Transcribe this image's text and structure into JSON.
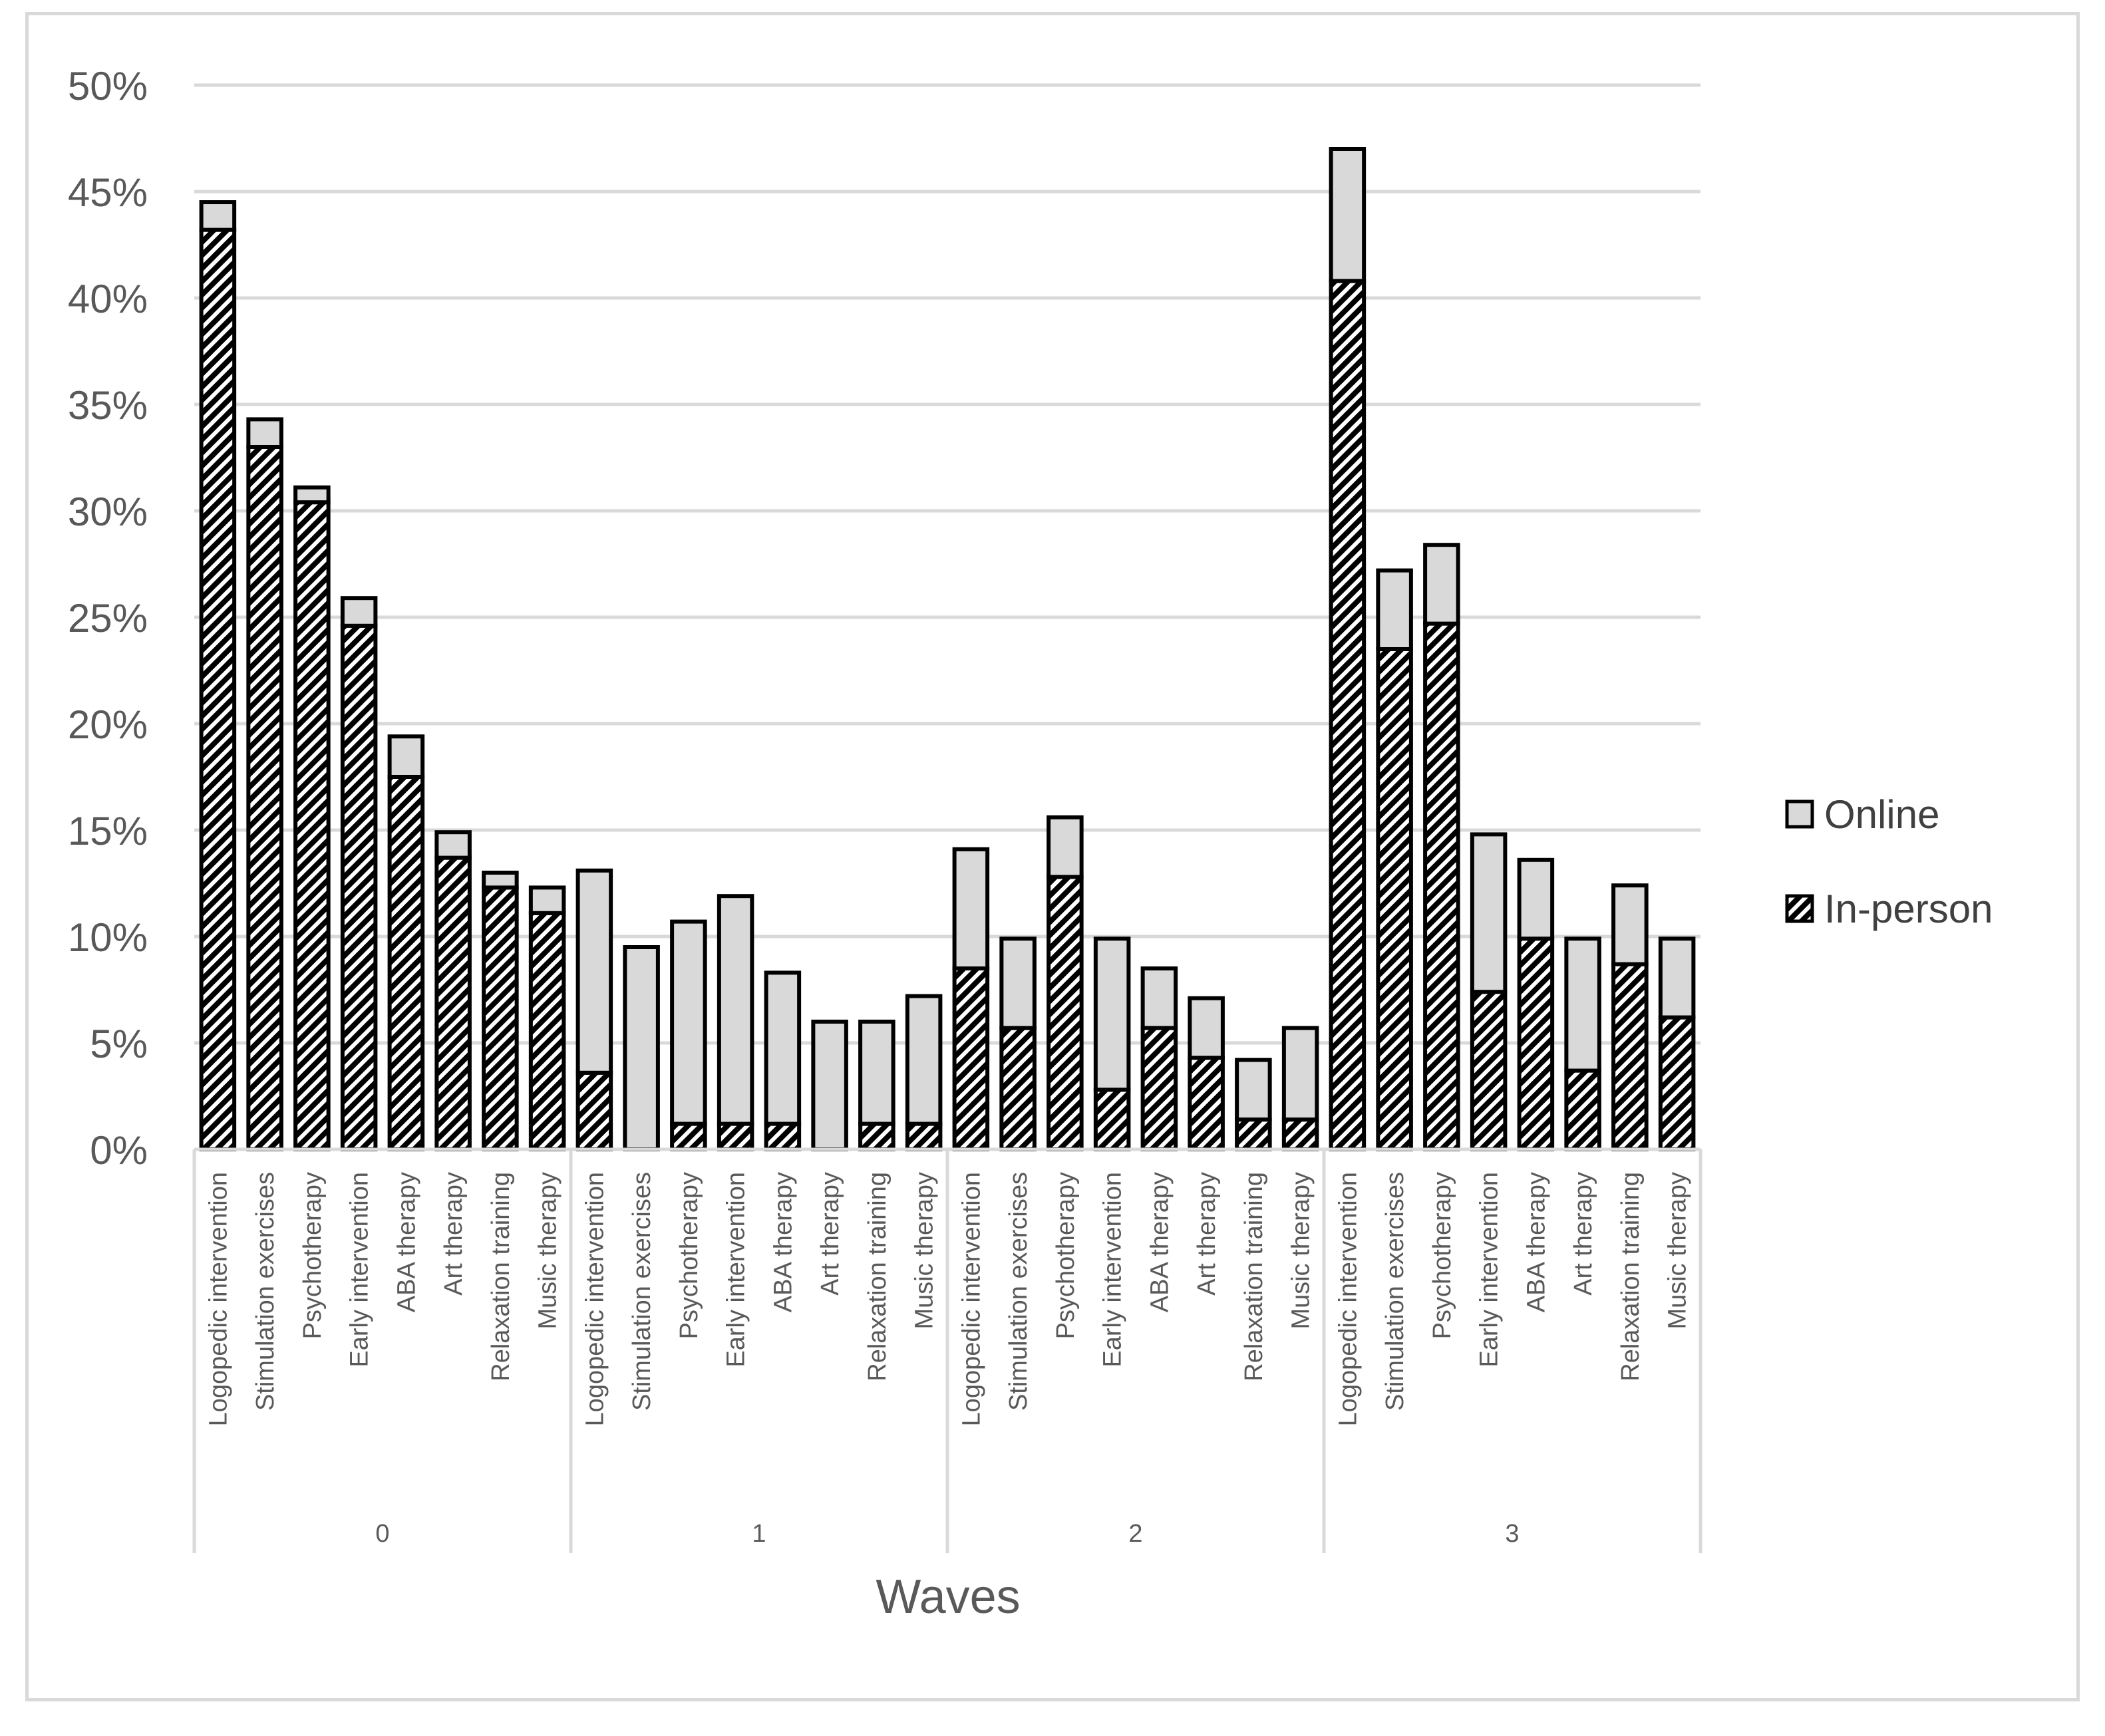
{
  "chart_data": {
    "type": "bar",
    "stacked": true,
    "xlabel": "Waves",
    "ylabel": "",
    "ylim": [
      0,
      50
    ],
    "y_ticks": [
      "0%",
      "5%",
      "10%",
      "15%",
      "20%",
      "25%",
      "30%",
      "35%",
      "40%",
      "45%",
      "50%"
    ],
    "grid": true,
    "legend_position": "right",
    "groups": [
      {
        "name": "0",
        "categories": [
          "Logopedic intervention",
          "Stimulation exercises",
          "Psychotherapy",
          "Early intervention",
          "ABA therapy",
          "Art therapy",
          "Relaxation training",
          "Music therapy"
        ],
        "in_person": [
          43.2,
          33.0,
          30.4,
          24.6,
          17.5,
          13.7,
          12.3,
          11.1
        ],
        "online": [
          1.3,
          1.3,
          0.7,
          1.3,
          1.9,
          1.2,
          0.7,
          1.2
        ]
      },
      {
        "name": "1",
        "categories": [
          "Logopedic intervention",
          "Stimulation exercises",
          "Psychotherapy",
          "Early intervention",
          "ABA therapy",
          "Art therapy",
          "Relaxation training",
          "Music therapy"
        ],
        "in_person": [
          3.6,
          0,
          1.2,
          1.2,
          1.2,
          0,
          1.2,
          1.2
        ],
        "online": [
          9.5,
          9.5,
          9.5,
          10.7,
          7.1,
          6.0,
          4.8,
          6.0
        ]
      },
      {
        "name": "2",
        "categories": [
          "Logopedic intervention",
          "Stimulation exercises",
          "Psychotherapy",
          "Early intervention",
          "ABA therapy",
          "Art therapy",
          "Relaxation training",
          "Music therapy"
        ],
        "in_person": [
          8.5,
          5.7,
          12.8,
          2.8,
          5.7,
          4.3,
          1.4,
          1.4
        ],
        "online": [
          5.6,
          4.2,
          2.8,
          7.1,
          2.8,
          2.8,
          2.8,
          4.3
        ]
      },
      {
        "name": "3",
        "categories": [
          "Logopedic intervention",
          "Stimulation exercises",
          "Psychotherapy",
          "Early intervention",
          "ABA therapy",
          "Art therapy",
          "Relaxation training",
          "Music therapy"
        ],
        "in_person": [
          40.8,
          23.5,
          24.7,
          7.4,
          9.9,
          3.7,
          8.7,
          6.2
        ],
        "online": [
          6.2,
          3.7,
          3.7,
          7.4,
          3.7,
          6.2,
          3.7,
          3.7
        ]
      }
    ],
    "series": [
      {
        "name": "Online",
        "key": "online",
        "fill": "#d9d9d9"
      },
      {
        "name": "In-person",
        "key": "in_person",
        "pattern": "diagonal-hatch"
      }
    ]
  },
  "colors": {
    "grid": "#d9d9d9",
    "bar_outline": "#000000",
    "online_fill": "#d9d9d9",
    "hatch_dark": "#000000",
    "hatch_light": "#ffffff",
    "text": "#595959"
  }
}
